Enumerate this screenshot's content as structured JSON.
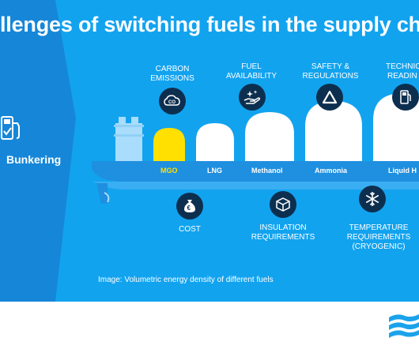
{
  "title": "llenges of switching fuels in the supply cha",
  "left_label": "Bunkering",
  "caption": "Image: Volumetric energy density of different fuels",
  "top_challenges": [
    {
      "line1": "CARBON",
      "line2": "EMISSIONS",
      "icon": "co2-icon"
    },
    {
      "line1": "FUEL",
      "line2": "AVAILABILITY",
      "icon": "hand-sparkle-icon"
    },
    {
      "line1": "SAFETY &",
      "line2": "REGULATIONS",
      "icon": "triangle-warning-icon"
    },
    {
      "line1": "TECHNIC",
      "line2": "READIN",
      "icon": "fuel-pump-icon"
    }
  ],
  "bottom_challenges": [
    {
      "line1": "COST",
      "line2": "",
      "line3": "",
      "icon": "money-bag-icon"
    },
    {
      "line1": "INSULATION",
      "line2": "REQUIREMENTS",
      "line3": "",
      "icon": "cube-icon"
    },
    {
      "line1": "TEMPERATURE",
      "line2": "REQUIREMENTS",
      "line3": "(CRYOGENIC)",
      "icon": "snowflake-icon"
    }
  ],
  "fuels": [
    {
      "name": "MGO",
      "color": "#ffe000"
    },
    {
      "name": "LNG",
      "color": "#ffffff"
    },
    {
      "name": "Methanol",
      "color": "#ffffff"
    },
    {
      "name": "Ammonia",
      "color": "#ffffff"
    },
    {
      "name": "Liquid H",
      "color": "#ffffff"
    }
  ],
  "colors": {
    "background": "#12a3ef",
    "left_panel": "#1687d8",
    "hull": "#1f8fe0",
    "icon_bg": "#0d2f4f",
    "logo": "#1aa3ea"
  }
}
